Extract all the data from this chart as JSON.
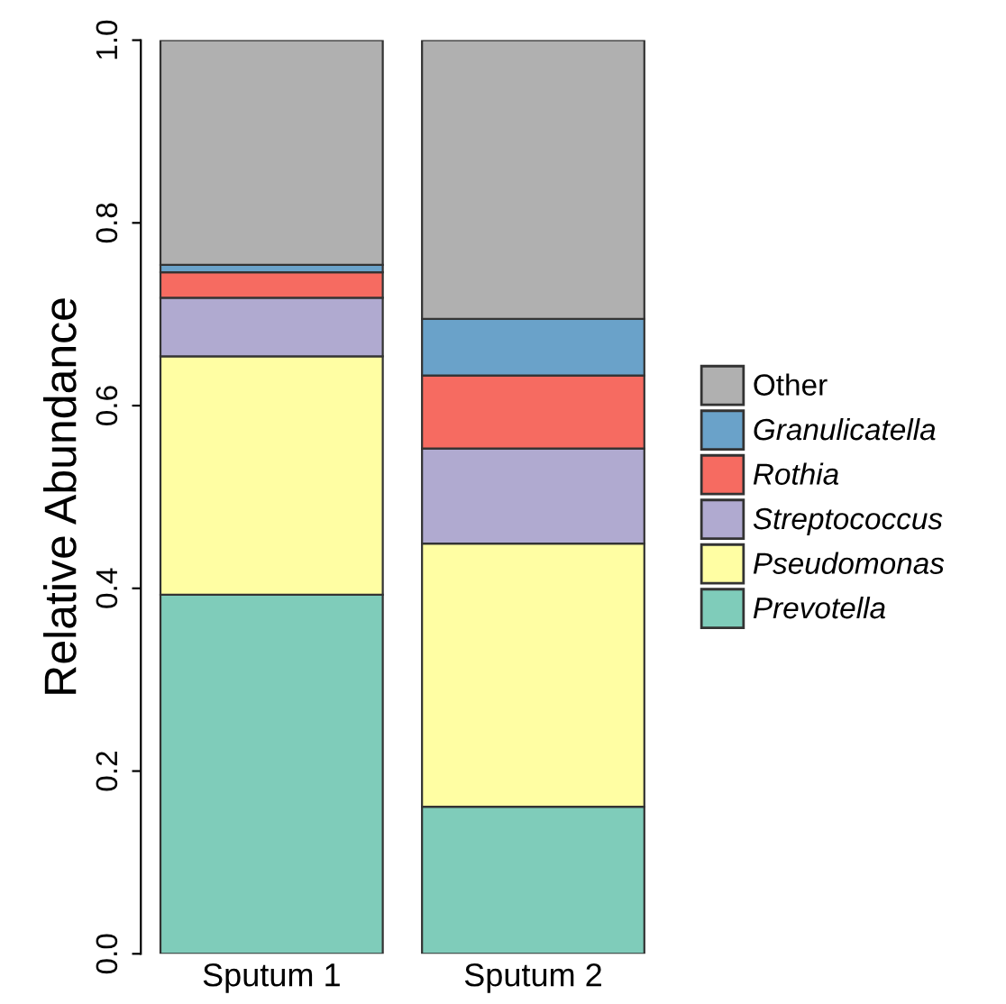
{
  "chart_data": {
    "type": "bar",
    "stacked": true,
    "ylabel": "Relative Abundance",
    "categories": [
      "Sputum 1",
      "Sputum 2"
    ],
    "series": [
      {
        "name": "Prevotella",
        "color": "#7fccba",
        "values": [
          0.393,
          0.161
        ]
      },
      {
        "name": "Pseudomonas",
        "color": "#fffea3",
        "values": [
          0.261,
          0.288
        ]
      },
      {
        "name": "Streptococcus",
        "color": "#b0aad0",
        "values": [
          0.064,
          0.104
        ]
      },
      {
        "name": "Rothia",
        "color": "#f66b61",
        "values": [
          0.028,
          0.08
        ]
      },
      {
        "name": "Granulicatella",
        "color": "#6aa2c9",
        "values": [
          0.008,
          0.062
        ]
      },
      {
        "name": "Other",
        "color": "#b0b0b0",
        "values": [
          0.246,
          0.305
        ]
      }
    ],
    "ylim": [
      0,
      1
    ],
    "yticks": [
      {
        "value": 0,
        "label": "0.0"
      },
      0.2,
      0.4,
      0.6,
      0.8,
      {
        "value": 1,
        "label": "1.0"
      }
    ],
    "legend": "right",
    "grid": false
  }
}
